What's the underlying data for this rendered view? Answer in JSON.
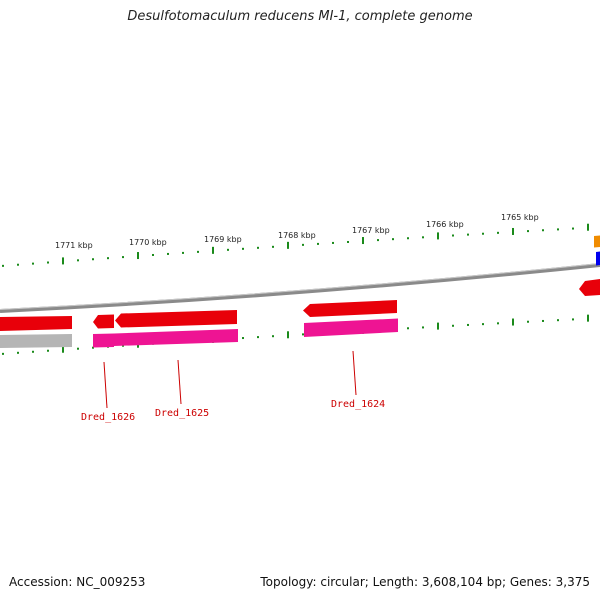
{
  "title": "Desulfotomaculum reducens MI-1, complete genome",
  "accession": "Accession: NC_009253",
  "summary": "Topology: circular; Length: 3,608,104 bp; Genes: 3,375",
  "ticks": [
    "1771 kbp",
    "1770 kbp",
    "1769 kbp",
    "1768 kbp",
    "1767 kbp",
    "1766 kbp",
    "1765 kbp"
  ],
  "genes": [
    "Dred_1626",
    "Dred_1625",
    "Dred_1624"
  ],
  "colors": {
    "backbone": "#8a8a8a",
    "cds_forward": "#e8000a",
    "cds_reverse": "#ee1493",
    "grey_feature": "#b5b5b5",
    "gene_label": "#cc0000",
    "tick_dots": "#1a8a1a",
    "orange_feature": "#f08c00",
    "blue_feature": "#0000ee"
  }
}
